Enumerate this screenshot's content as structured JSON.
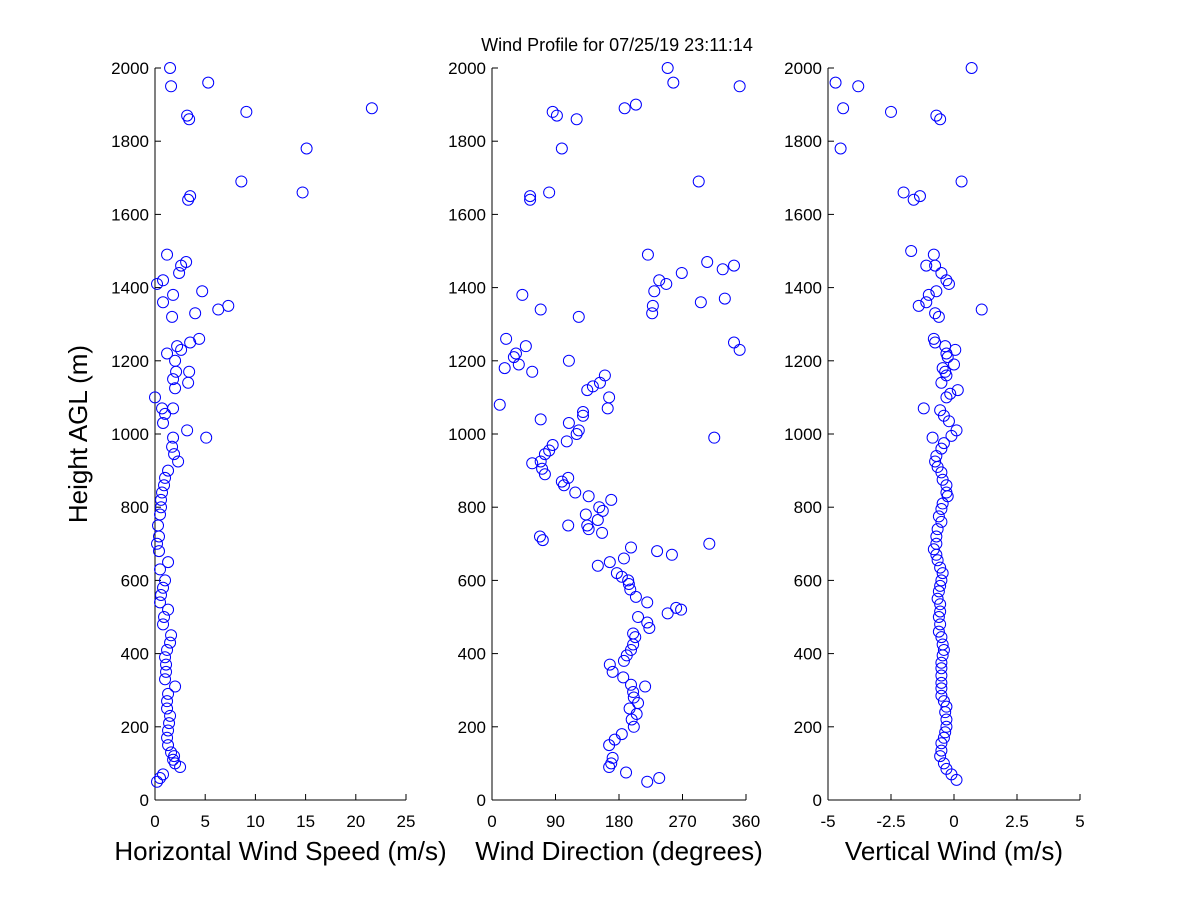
{
  "chart_data": [
    {
      "type": "scatter",
      "title": "Wind Profile for  07/25/19 23:11:14",
      "xlabel": "Horizontal Wind Speed (m/s)",
      "ylabel": "Height AGL (m)",
      "color": "#0000ff",
      "xlim": [
        0,
        25
      ],
      "xticks": [
        0,
        5,
        10,
        15,
        20,
        25
      ],
      "ylim": [
        0,
        2000
      ],
      "yticks": [
        0,
        200,
        400,
        600,
        800,
        1000,
        1200,
        1400,
        1600,
        1800,
        2000
      ],
      "x": [
        1.5,
        5.3,
        1.6,
        21.6,
        9.1,
        3.2,
        3.4,
        15.1,
        8.6,
        14.7,
        3.5,
        3.3,
        1.2,
        3.1,
        2.6,
        2.4,
        0.8,
        0.2,
        4.7,
        1.8,
        0.8,
        7.3,
        6.3,
        4.0,
        1.7,
        4.4,
        3.5,
        2.2,
        2.6,
        1.2,
        2.0,
        2.1,
        3.4,
        1.8,
        3.3,
        2.0,
        0,
        0.7,
        1.8,
        1.0,
        0.8,
        3.2,
        1.8,
        5.1,
        1.7,
        1.9,
        2.3,
        1.3,
        1.0,
        0.9,
        0.7,
        0.6,
        0.6,
        0.5,
        0.3,
        0.4,
        0.2,
        0.4,
        1.3,
        0.5,
        1.0,
        0.8,
        0.6,
        0.5,
        1.3,
        0.9,
        0.8,
        1.6,
        1.5,
        1.2,
        1.0,
        1.1,
        1.1,
        1.0,
        2.0,
        1.3,
        1.2,
        1.2,
        1.5,
        1.4,
        1.3,
        1.2,
        1.3,
        1.6,
        1.9,
        1.8,
        2.0,
        2.5,
        0.8,
        0.5,
        0.2
      ],
      "y": [
        2000,
        1960,
        1950,
        1890,
        1880,
        1870,
        1860,
        1780,
        1690,
        1660,
        1650,
        1640,
        1490,
        1470,
        1460,
        1440,
        1420,
        1410,
        1390,
        1380,
        1360,
        1350,
        1340,
        1330,
        1320,
        1260,
        1250,
        1240,
        1230,
        1220,
        1200,
        1170,
        1170,
        1150,
        1140,
        1125,
        1100,
        1070,
        1070,
        1055,
        1030,
        1010,
        990,
        990,
        965,
        945,
        925,
        900,
        880,
        860,
        840,
        820,
        800,
        780,
        750,
        720,
        700,
        680,
        650,
        630,
        600,
        580,
        560,
        540,
        520,
        500,
        480,
        450,
        430,
        410,
        390,
        370,
        350,
        330,
        310,
        290,
        270,
        250,
        230,
        210,
        190,
        170,
        150,
        130,
        120,
        110,
        100,
        90,
        70,
        60,
        50
      ]
    },
    {
      "type": "scatter",
      "xlabel": "Wind Direction (degrees)",
      "color": "#0000ff",
      "xlim": [
        0,
        360
      ],
      "xticks": [
        0,
        90,
        180,
        270,
        360
      ],
      "ylim": [
        0,
        2000
      ],
      "yticks": [
        0,
        200,
        400,
        600,
        800,
        1000,
        1200,
        1400,
        1600,
        1800,
        2000
      ],
      "x": [
        249,
        257,
        351,
        204,
        188,
        86,
        92,
        120,
        99,
        293,
        81,
        54,
        54,
        221,
        305,
        343,
        327,
        269,
        237,
        247,
        230,
        43,
        296,
        330,
        228,
        69,
        227,
        123,
        20,
        343,
        48,
        351,
        34,
        31,
        109,
        38,
        18,
        57,
        160,
        153,
        143,
        135,
        166,
        11,
        164,
        129,
        129,
        69,
        109,
        123,
        120,
        315,
        106,
        86,
        81,
        75,
        69,
        57,
        71,
        75,
        108,
        99,
        102,
        118,
        137,
        169,
        152,
        157,
        133,
        150,
        135,
        108,
        137,
        156,
        68,
        72,
        308,
        197,
        234,
        255,
        187,
        167,
        150,
        177,
        184,
        193,
        194,
        196,
        204,
        220,
        261,
        268,
        249,
        207,
        220,
        223,
        200,
        203,
        200,
        197,
        191,
        187,
        167,
        171,
        186,
        197,
        217,
        200,
        201,
        207,
        195,
        205,
        198,
        201,
        184,
        174,
        166,
        171,
        169,
        166,
        190,
        237,
        220
      ],
      "y": [
        2000,
        1960,
        1950,
        1900,
        1890,
        1880,
        1870,
        1860,
        1780,
        1690,
        1660,
        1650,
        1640,
        1490,
        1470,
        1460,
        1450,
        1440,
        1420,
        1410,
        1390,
        1380,
        1360,
        1370,
        1350,
        1340,
        1330,
        1320,
        1260,
        1250,
        1240,
        1230,
        1220,
        1210,
        1200,
        1190,
        1180,
        1170,
        1160,
        1140,
        1130,
        1120,
        1100,
        1080,
        1070,
        1060,
        1050,
        1040,
        1030,
        1010,
        1000,
        990,
        980,
        970,
        955,
        945,
        925,
        920,
        905,
        890,
        880,
        870,
        860,
        840,
        830,
        820,
        800,
        790,
        780,
        765,
        750,
        750,
        740,
        730,
        720,
        710,
        700,
        690,
        680,
        670,
        660,
        650,
        640,
        620,
        610,
        600,
        590,
        575,
        555,
        540,
        525,
        520,
        510,
        500,
        485,
        470,
        455,
        445,
        425,
        410,
        395,
        380,
        370,
        350,
        335,
        315,
        310,
        295,
        280,
        265,
        250,
        235,
        220,
        200,
        180,
        165,
        150,
        115,
        100,
        90,
        75,
        60,
        50
      ]
    },
    {
      "type": "scatter",
      "xlabel": "Vertical Wind (m/s)",
      "color": "#0000ff",
      "xlim": [
        -5,
        5
      ],
      "xticks": [
        -5,
        -2.5,
        0,
        2.5,
        5
      ],
      "ylim": [
        0,
        2000
      ],
      "yticks": [
        0,
        200,
        400,
        600,
        800,
        1000,
        1200,
        1400,
        1600,
        1800,
        2000
      ],
      "x": [
        0.7,
        -4.7,
        -3.8,
        -4.4,
        -2.5,
        -0.7,
        -0.55,
        -4.5,
        0.3,
        -2.0,
        -1.35,
        -1.6,
        -1.7,
        -0.8,
        -0.75,
        -1.1,
        -0.5,
        -0.3,
        -0.2,
        -0.7,
        -1.0,
        -1.1,
        -1.4,
        1.1,
        -0.75,
        -0.6,
        -0.8,
        -0.75,
        -0.35,
        0.05,
        -0.3,
        -0.25,
        0,
        -0.45,
        -0.35,
        -0.3,
        -0.5,
        0.15,
        -0.15,
        -0.3,
        -1.2,
        -0.55,
        -0.4,
        -0.2,
        0.1,
        -0.1,
        -0.85,
        -0.4,
        -0.5,
        -0.7,
        -0.75,
        -0.65,
        -0.5,
        -0.45,
        -0.3,
        -0.3,
        -0.25,
        -0.45,
        -0.5,
        -0.6,
        -0.5,
        -0.65,
        -0.7,
        -0.7,
        -0.8,
        -0.7,
        -0.65,
        -0.55,
        -0.45,
        -0.5,
        -0.55,
        -0.6,
        -0.65,
        -0.55,
        -0.55,
        -0.6,
        -0.55,
        -0.6,
        -0.5,
        -0.45,
        -0.4,
        -0.45,
        -0.5,
        -0.5,
        -0.5,
        -0.5,
        -0.5,
        -0.5,
        -0.4,
        -0.3,
        -0.35,
        -0.3,
        -0.3,
        -0.35,
        -0.4,
        -0.5,
        -0.5,
        -0.55,
        -0.4,
        -0.3,
        -0.1,
        0.1
      ],
      "y": [
        2000,
        1960,
        1950,
        1890,
        1880,
        1870,
        1860,
        1780,
        1690,
        1660,
        1650,
        1640,
        1500,
        1490,
        1460,
        1460,
        1440,
        1420,
        1410,
        1390,
        1380,
        1360,
        1350,
        1340,
        1330,
        1320,
        1260,
        1250,
        1240,
        1230,
        1220,
        1210,
        1190,
        1180,
        1170,
        1160,
        1140,
        1120,
        1110,
        1100,
        1070,
        1065,
        1050,
        1035,
        1010,
        995,
        990,
        975,
        960,
        940,
        925,
        910,
        895,
        875,
        860,
        840,
        830,
        810,
        795,
        775,
        760,
        740,
        720,
        700,
        685,
        670,
        655,
        635,
        620,
        600,
        585,
        570,
        550,
        535,
        515,
        500,
        480,
        460,
        445,
        425,
        410,
        395,
        375,
        360,
        340,
        320,
        305,
        285,
        270,
        255,
        240,
        220,
        200,
        185,
        170,
        155,
        135,
        120,
        100,
        85,
        70,
        55
      ]
    }
  ]
}
